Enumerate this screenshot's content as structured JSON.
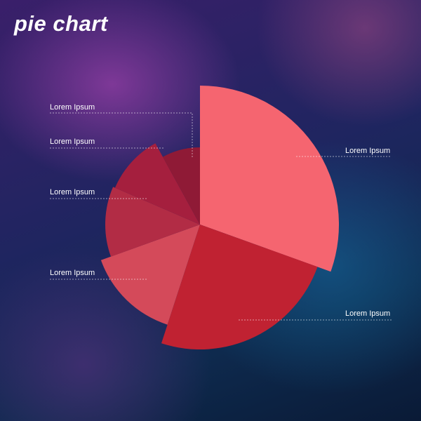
{
  "title": "pie chart",
  "chart_data": {
    "type": "pie",
    "title": "pie chart",
    "slices": [
      {
        "label": "Lorem Ipsum",
        "value": 30.5,
        "color": "#f56570"
      },
      {
        "label": "Lorem Ipsum",
        "value": 24.5,
        "color": "#c02232"
      },
      {
        "label": "Lorem Ipsum",
        "value": 14.5,
        "color": "#d44a5a"
      },
      {
        "label": "Lorem Ipsum",
        "value": 12.0,
        "color": "#b22c45"
      },
      {
        "label": "Lorem Ipsum",
        "value": 10.5,
        "color": "#a51f3e"
      },
      {
        "label": "Lorem Ipsum",
        "value": 8.0,
        "color": "#8f1a36"
      }
    ],
    "legend": "callout labels"
  }
}
